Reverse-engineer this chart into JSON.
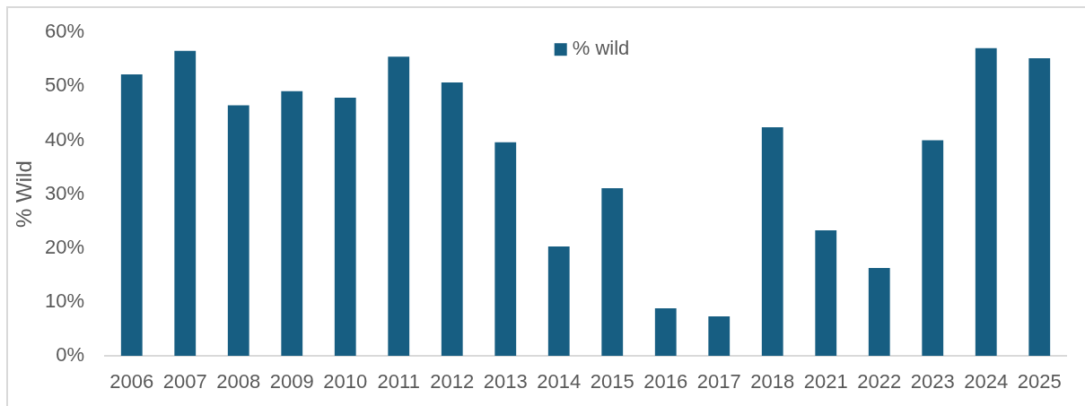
{
  "chart_data": {
    "type": "bar",
    "ylabel": "% Wild",
    "categories": [
      "2006",
      "2007",
      "2008",
      "2009",
      "2010",
      "2011",
      "2012",
      "2013",
      "2014",
      "2015",
      "2016",
      "2017",
      "2018",
      "2021",
      "2022",
      "2023",
      "2024",
      "2025"
    ],
    "series": [
      {
        "name": "% wild",
        "color": "#175e82",
        "values": [
          52.2,
          56.6,
          46.5,
          49.1,
          47.9,
          55.5,
          50.7,
          39.6,
          20.3,
          31.1,
          8.8,
          7.3,
          42.4,
          23.3,
          16.3,
          40.0,
          57.1,
          55.2
        ]
      }
    ],
    "ylim": [
      0,
      60
    ],
    "yticks": [
      {
        "value": 0,
        "label": "0%"
      },
      {
        "value": 10,
        "label": "10%"
      },
      {
        "value": 20,
        "label": "20%"
      },
      {
        "value": 30,
        "label": "30%"
      },
      {
        "value": 40,
        "label": "40%"
      },
      {
        "value": 50,
        "label": "50%"
      },
      {
        "value": 60,
        "label": "60%"
      }
    ],
    "grid": false,
    "legend": "top"
  }
}
